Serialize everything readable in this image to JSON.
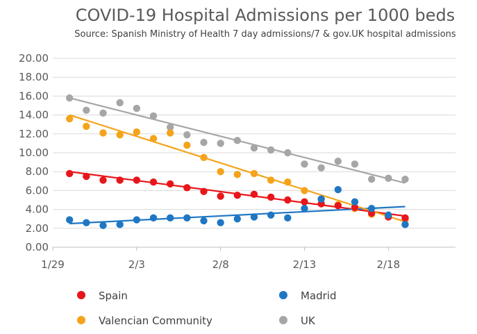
{
  "chart_data": {
    "type": "scatter",
    "title": "COVID-19 Hospital Admissions per 1000 beds",
    "subtitle": "Source: Spanish Ministry of Health 7 day admissions/7 & gov.UK hospital admissions",
    "xlabel": "",
    "ylabel": "",
    "xlim_days": [
      29,
      53
    ],
    "x_tick_values": [
      29,
      34,
      39,
      44,
      49
    ],
    "x_tick_labels": [
      "1/29",
      "2/3",
      "2/8",
      "2/13",
      "2/18"
    ],
    "ylim": [
      0,
      20
    ],
    "y_tick_values": [
      0,
      2,
      4,
      6,
      8,
      10,
      12,
      14,
      16,
      18,
      20
    ],
    "y_tick_labels": [
      "0.00",
      "2.00",
      "4.00",
      "6.00",
      "8.00",
      "10.00",
      "12.00",
      "14.00",
      "16.00",
      "18.00",
      "20.00"
    ],
    "grid": "horizontal",
    "legend_position": "bottom",
    "x_dates": [
      "1/30",
      "1/31",
      "2/1",
      "2/2",
      "2/3",
      "2/4",
      "2/5",
      "2/6",
      "2/7",
      "2/8",
      "2/9",
      "2/10",
      "2/11",
      "2/12",
      "2/13",
      "2/14",
      "2/15",
      "2/16",
      "2/17",
      "2/18",
      "2/19"
    ],
    "series": [
      {
        "name": "Spain",
        "color": "#e8161b",
        "values": [
          7.8,
          7.5,
          7.1,
          7.1,
          7.1,
          6.9,
          6.7,
          6.3,
          5.9,
          5.4,
          5.5,
          5.6,
          5.3,
          5.0,
          4.8,
          4.6,
          4.4,
          4.2,
          3.6,
          3.2,
          3.1
        ],
        "trend": [
          8.0,
          3.3
        ]
      },
      {
        "name": "Madrid",
        "color": "#1f77c4",
        "values": [
          2.9,
          2.6,
          2.3,
          2.4,
          2.9,
          3.1,
          3.1,
          3.1,
          2.8,
          2.6,
          3.0,
          3.2,
          3.4,
          3.1,
          4.1,
          5.1,
          6.1,
          4.8,
          4.1,
          3.4,
          2.4
        ],
        "trend": [
          2.5,
          4.3
        ]
      },
      {
        "name": "Valencian Community",
        "color": "#f5a31a",
        "values": [
          13.6,
          12.8,
          12.1,
          11.9,
          12.2,
          11.5,
          12.1,
          10.8,
          9.5,
          8.0,
          7.7,
          7.8,
          7.1,
          6.9,
          6.0,
          5.1,
          4.5,
          4.1,
          3.5,
          3.3,
          2.9
        ],
        "trend": [
          14.0,
          2.7
        ]
      },
      {
        "name": "UK",
        "color": "#a6a6a6",
        "values": [
          15.8,
          14.5,
          14.2,
          15.3,
          14.7,
          13.9,
          12.7,
          11.9,
          11.1,
          11.0,
          11.3,
          10.5,
          10.3,
          10.0,
          8.8,
          8.4,
          9.1,
          8.8,
          7.2,
          7.3,
          7.2
        ],
        "trend": [
          15.8,
          6.8
        ]
      }
    ],
    "legend": [
      {
        "name": "Spain",
        "color": "#e8161b"
      },
      {
        "name": "Madrid",
        "color": "#1f77c4"
      },
      {
        "name": "Valencian Community",
        "color": "#f5a31a"
      },
      {
        "name": "UK",
        "color": "#a6a6a6"
      }
    ]
  }
}
